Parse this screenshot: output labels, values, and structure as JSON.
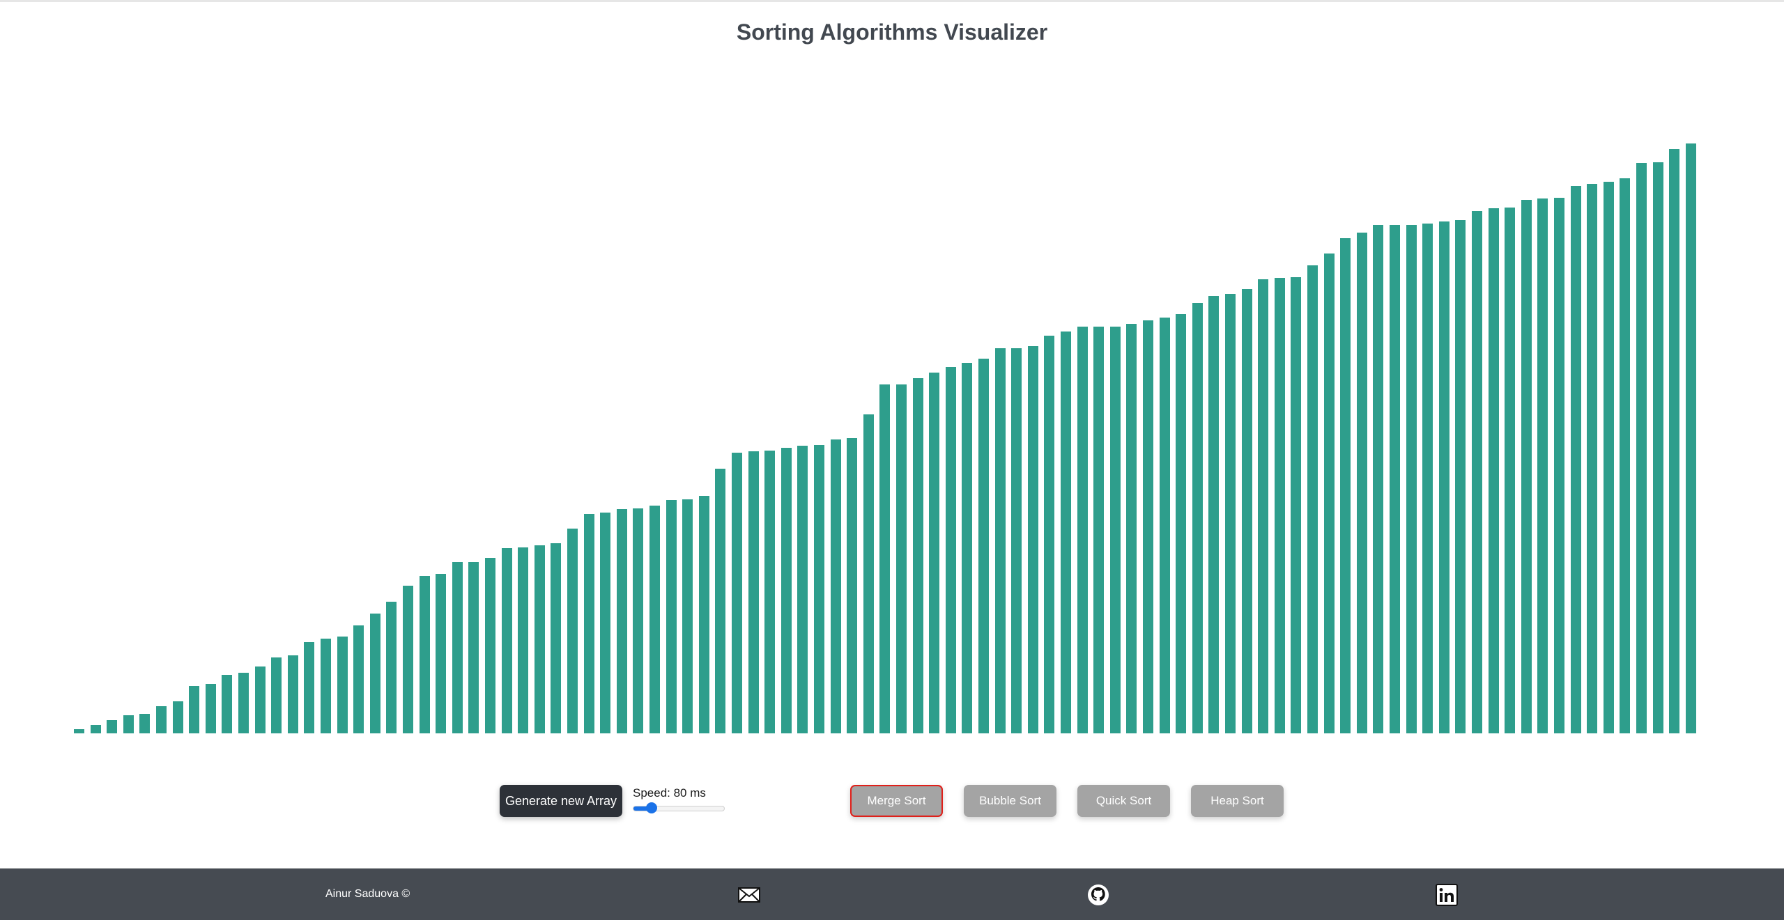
{
  "header": {
    "title": "Sorting Algorithms Visualizer"
  },
  "array": {
    "bar_color": "#2e9e8c",
    "max_value": 100,
    "values": [
      0.7,
      1.3,
      2.1,
      2.9,
      3.1,
      4.4,
      5.2,
      7.6,
      7.9,
      9.4,
      9.8,
      10.8,
      12.2,
      12.5,
      14.7,
      15.2,
      15.6,
      17.4,
      19.3,
      21.2,
      23.7,
      25.3,
      25.6,
      27.5,
      27.6,
      28.2,
      29.8,
      29.9,
      30.2,
      30.6,
      32.9,
      35.3,
      35.5,
      36.1,
      36.2,
      36.6,
      37.5,
      37.6,
      38.2,
      42.5,
      45.1,
      45.3,
      45.5,
      45.9,
      46.3,
      46.4,
      47.3,
      47.5,
      51.3,
      56.1,
      56.1,
      57.1,
      58.0,
      58.9,
      59.6,
      60.3,
      61.9,
      61.9,
      62.3,
      63.9,
      64.6,
      65.4,
      65.4,
      65.4,
      65.8,
      66.4,
      66.8,
      67.4,
      69.2,
      70.3,
      70.7,
      71.4,
      73.0,
      73.2,
      73.4,
      75.2,
      77.2,
      79.6,
      80.5,
      81.7,
      81.8,
      81.8,
      82.0,
      82.3,
      82.5,
      84.0,
      84.4,
      84.6,
      85.8,
      86.0,
      86.1,
      88.0,
      88.4,
      88.7,
      89.3,
      91.7,
      91.8,
      94.0,
      94.8
    ]
  },
  "controls": {
    "generate_label": "Generate new Array",
    "speed_label": "Speed: 80 ms",
    "speed_fraction": 0.2,
    "slider_color": "#1b72e8",
    "sort_buttons": [
      {
        "label": "Merge Sort",
        "active": true
      },
      {
        "label": "Bubble Sort",
        "active": false
      },
      {
        "label": "Quick Sort",
        "active": false
      },
      {
        "label": "Heap Sort",
        "active": false
      }
    ]
  },
  "footer": {
    "author": "Ainur Saduova ©",
    "icons": [
      "mail-icon",
      "github-icon",
      "linkedin-icon"
    ]
  }
}
